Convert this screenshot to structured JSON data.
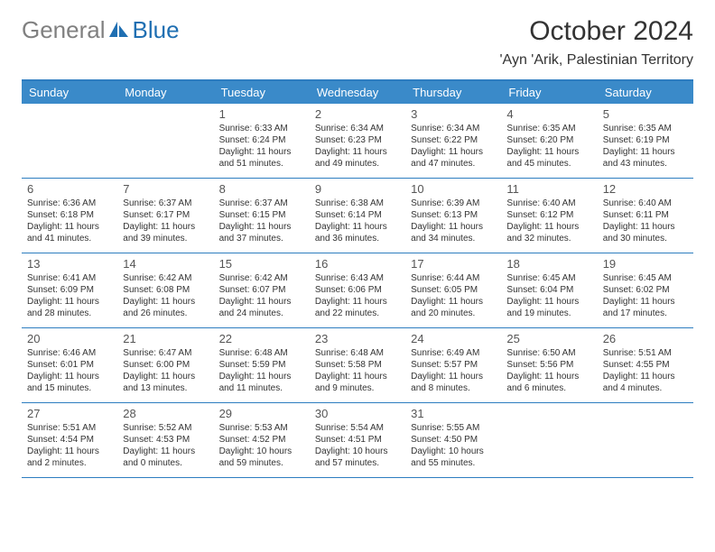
{
  "logo": {
    "text_gray": "General",
    "text_blue": "Blue"
  },
  "title": "October 2024",
  "location": "'Ayn 'Arik, Palestinian Territory",
  "colors": {
    "header_bg": "#3a8ac9",
    "header_text": "#ffffff",
    "border": "#2d7dc0",
    "body_text": "#333333",
    "logo_gray": "#808080",
    "logo_blue": "#1f6fb2",
    "background": "#ffffff"
  },
  "fonts": {
    "title_size": 30,
    "location_size": 16,
    "header_size": 13,
    "daynum_size": 13,
    "info_size": 10
  },
  "dayHeaders": [
    "Sunday",
    "Monday",
    "Tuesday",
    "Wednesday",
    "Thursday",
    "Friday",
    "Saturday"
  ],
  "weeks": [
    [
      {
        "day": "",
        "sunrise": "",
        "sunset": "",
        "daylight": ""
      },
      {
        "day": "",
        "sunrise": "",
        "sunset": "",
        "daylight": ""
      },
      {
        "day": "1",
        "sunrise": "Sunrise: 6:33 AM",
        "sunset": "Sunset: 6:24 PM",
        "daylight": "Daylight: 11 hours and 51 minutes."
      },
      {
        "day": "2",
        "sunrise": "Sunrise: 6:34 AM",
        "sunset": "Sunset: 6:23 PM",
        "daylight": "Daylight: 11 hours and 49 minutes."
      },
      {
        "day": "3",
        "sunrise": "Sunrise: 6:34 AM",
        "sunset": "Sunset: 6:22 PM",
        "daylight": "Daylight: 11 hours and 47 minutes."
      },
      {
        "day": "4",
        "sunrise": "Sunrise: 6:35 AM",
        "sunset": "Sunset: 6:20 PM",
        "daylight": "Daylight: 11 hours and 45 minutes."
      },
      {
        "day": "5",
        "sunrise": "Sunrise: 6:35 AM",
        "sunset": "Sunset: 6:19 PM",
        "daylight": "Daylight: 11 hours and 43 minutes."
      }
    ],
    [
      {
        "day": "6",
        "sunrise": "Sunrise: 6:36 AM",
        "sunset": "Sunset: 6:18 PM",
        "daylight": "Daylight: 11 hours and 41 minutes."
      },
      {
        "day": "7",
        "sunrise": "Sunrise: 6:37 AM",
        "sunset": "Sunset: 6:17 PM",
        "daylight": "Daylight: 11 hours and 39 minutes."
      },
      {
        "day": "8",
        "sunrise": "Sunrise: 6:37 AM",
        "sunset": "Sunset: 6:15 PM",
        "daylight": "Daylight: 11 hours and 37 minutes."
      },
      {
        "day": "9",
        "sunrise": "Sunrise: 6:38 AM",
        "sunset": "Sunset: 6:14 PM",
        "daylight": "Daylight: 11 hours and 36 minutes."
      },
      {
        "day": "10",
        "sunrise": "Sunrise: 6:39 AM",
        "sunset": "Sunset: 6:13 PM",
        "daylight": "Daylight: 11 hours and 34 minutes."
      },
      {
        "day": "11",
        "sunrise": "Sunrise: 6:40 AM",
        "sunset": "Sunset: 6:12 PM",
        "daylight": "Daylight: 11 hours and 32 minutes."
      },
      {
        "day": "12",
        "sunrise": "Sunrise: 6:40 AM",
        "sunset": "Sunset: 6:11 PM",
        "daylight": "Daylight: 11 hours and 30 minutes."
      }
    ],
    [
      {
        "day": "13",
        "sunrise": "Sunrise: 6:41 AM",
        "sunset": "Sunset: 6:09 PM",
        "daylight": "Daylight: 11 hours and 28 minutes."
      },
      {
        "day": "14",
        "sunrise": "Sunrise: 6:42 AM",
        "sunset": "Sunset: 6:08 PM",
        "daylight": "Daylight: 11 hours and 26 minutes."
      },
      {
        "day": "15",
        "sunrise": "Sunrise: 6:42 AM",
        "sunset": "Sunset: 6:07 PM",
        "daylight": "Daylight: 11 hours and 24 minutes."
      },
      {
        "day": "16",
        "sunrise": "Sunrise: 6:43 AM",
        "sunset": "Sunset: 6:06 PM",
        "daylight": "Daylight: 11 hours and 22 minutes."
      },
      {
        "day": "17",
        "sunrise": "Sunrise: 6:44 AM",
        "sunset": "Sunset: 6:05 PM",
        "daylight": "Daylight: 11 hours and 20 minutes."
      },
      {
        "day": "18",
        "sunrise": "Sunrise: 6:45 AM",
        "sunset": "Sunset: 6:04 PM",
        "daylight": "Daylight: 11 hours and 19 minutes."
      },
      {
        "day": "19",
        "sunrise": "Sunrise: 6:45 AM",
        "sunset": "Sunset: 6:02 PM",
        "daylight": "Daylight: 11 hours and 17 minutes."
      }
    ],
    [
      {
        "day": "20",
        "sunrise": "Sunrise: 6:46 AM",
        "sunset": "Sunset: 6:01 PM",
        "daylight": "Daylight: 11 hours and 15 minutes."
      },
      {
        "day": "21",
        "sunrise": "Sunrise: 6:47 AM",
        "sunset": "Sunset: 6:00 PM",
        "daylight": "Daylight: 11 hours and 13 minutes."
      },
      {
        "day": "22",
        "sunrise": "Sunrise: 6:48 AM",
        "sunset": "Sunset: 5:59 PM",
        "daylight": "Daylight: 11 hours and 11 minutes."
      },
      {
        "day": "23",
        "sunrise": "Sunrise: 6:48 AM",
        "sunset": "Sunset: 5:58 PM",
        "daylight": "Daylight: 11 hours and 9 minutes."
      },
      {
        "day": "24",
        "sunrise": "Sunrise: 6:49 AM",
        "sunset": "Sunset: 5:57 PM",
        "daylight": "Daylight: 11 hours and 8 minutes."
      },
      {
        "day": "25",
        "sunrise": "Sunrise: 6:50 AM",
        "sunset": "Sunset: 5:56 PM",
        "daylight": "Daylight: 11 hours and 6 minutes."
      },
      {
        "day": "26",
        "sunrise": "Sunrise: 5:51 AM",
        "sunset": "Sunset: 4:55 PM",
        "daylight": "Daylight: 11 hours and 4 minutes."
      }
    ],
    [
      {
        "day": "27",
        "sunrise": "Sunrise: 5:51 AM",
        "sunset": "Sunset: 4:54 PM",
        "daylight": "Daylight: 11 hours and 2 minutes."
      },
      {
        "day": "28",
        "sunrise": "Sunrise: 5:52 AM",
        "sunset": "Sunset: 4:53 PM",
        "daylight": "Daylight: 11 hours and 0 minutes."
      },
      {
        "day": "29",
        "sunrise": "Sunrise: 5:53 AM",
        "sunset": "Sunset: 4:52 PM",
        "daylight": "Daylight: 10 hours and 59 minutes."
      },
      {
        "day": "30",
        "sunrise": "Sunrise: 5:54 AM",
        "sunset": "Sunset: 4:51 PM",
        "daylight": "Daylight: 10 hours and 57 minutes."
      },
      {
        "day": "31",
        "sunrise": "Sunrise: 5:55 AM",
        "sunset": "Sunset: 4:50 PM",
        "daylight": "Daylight: 10 hours and 55 minutes."
      },
      {
        "day": "",
        "sunrise": "",
        "sunset": "",
        "daylight": ""
      },
      {
        "day": "",
        "sunrise": "",
        "sunset": "",
        "daylight": ""
      }
    ]
  ]
}
